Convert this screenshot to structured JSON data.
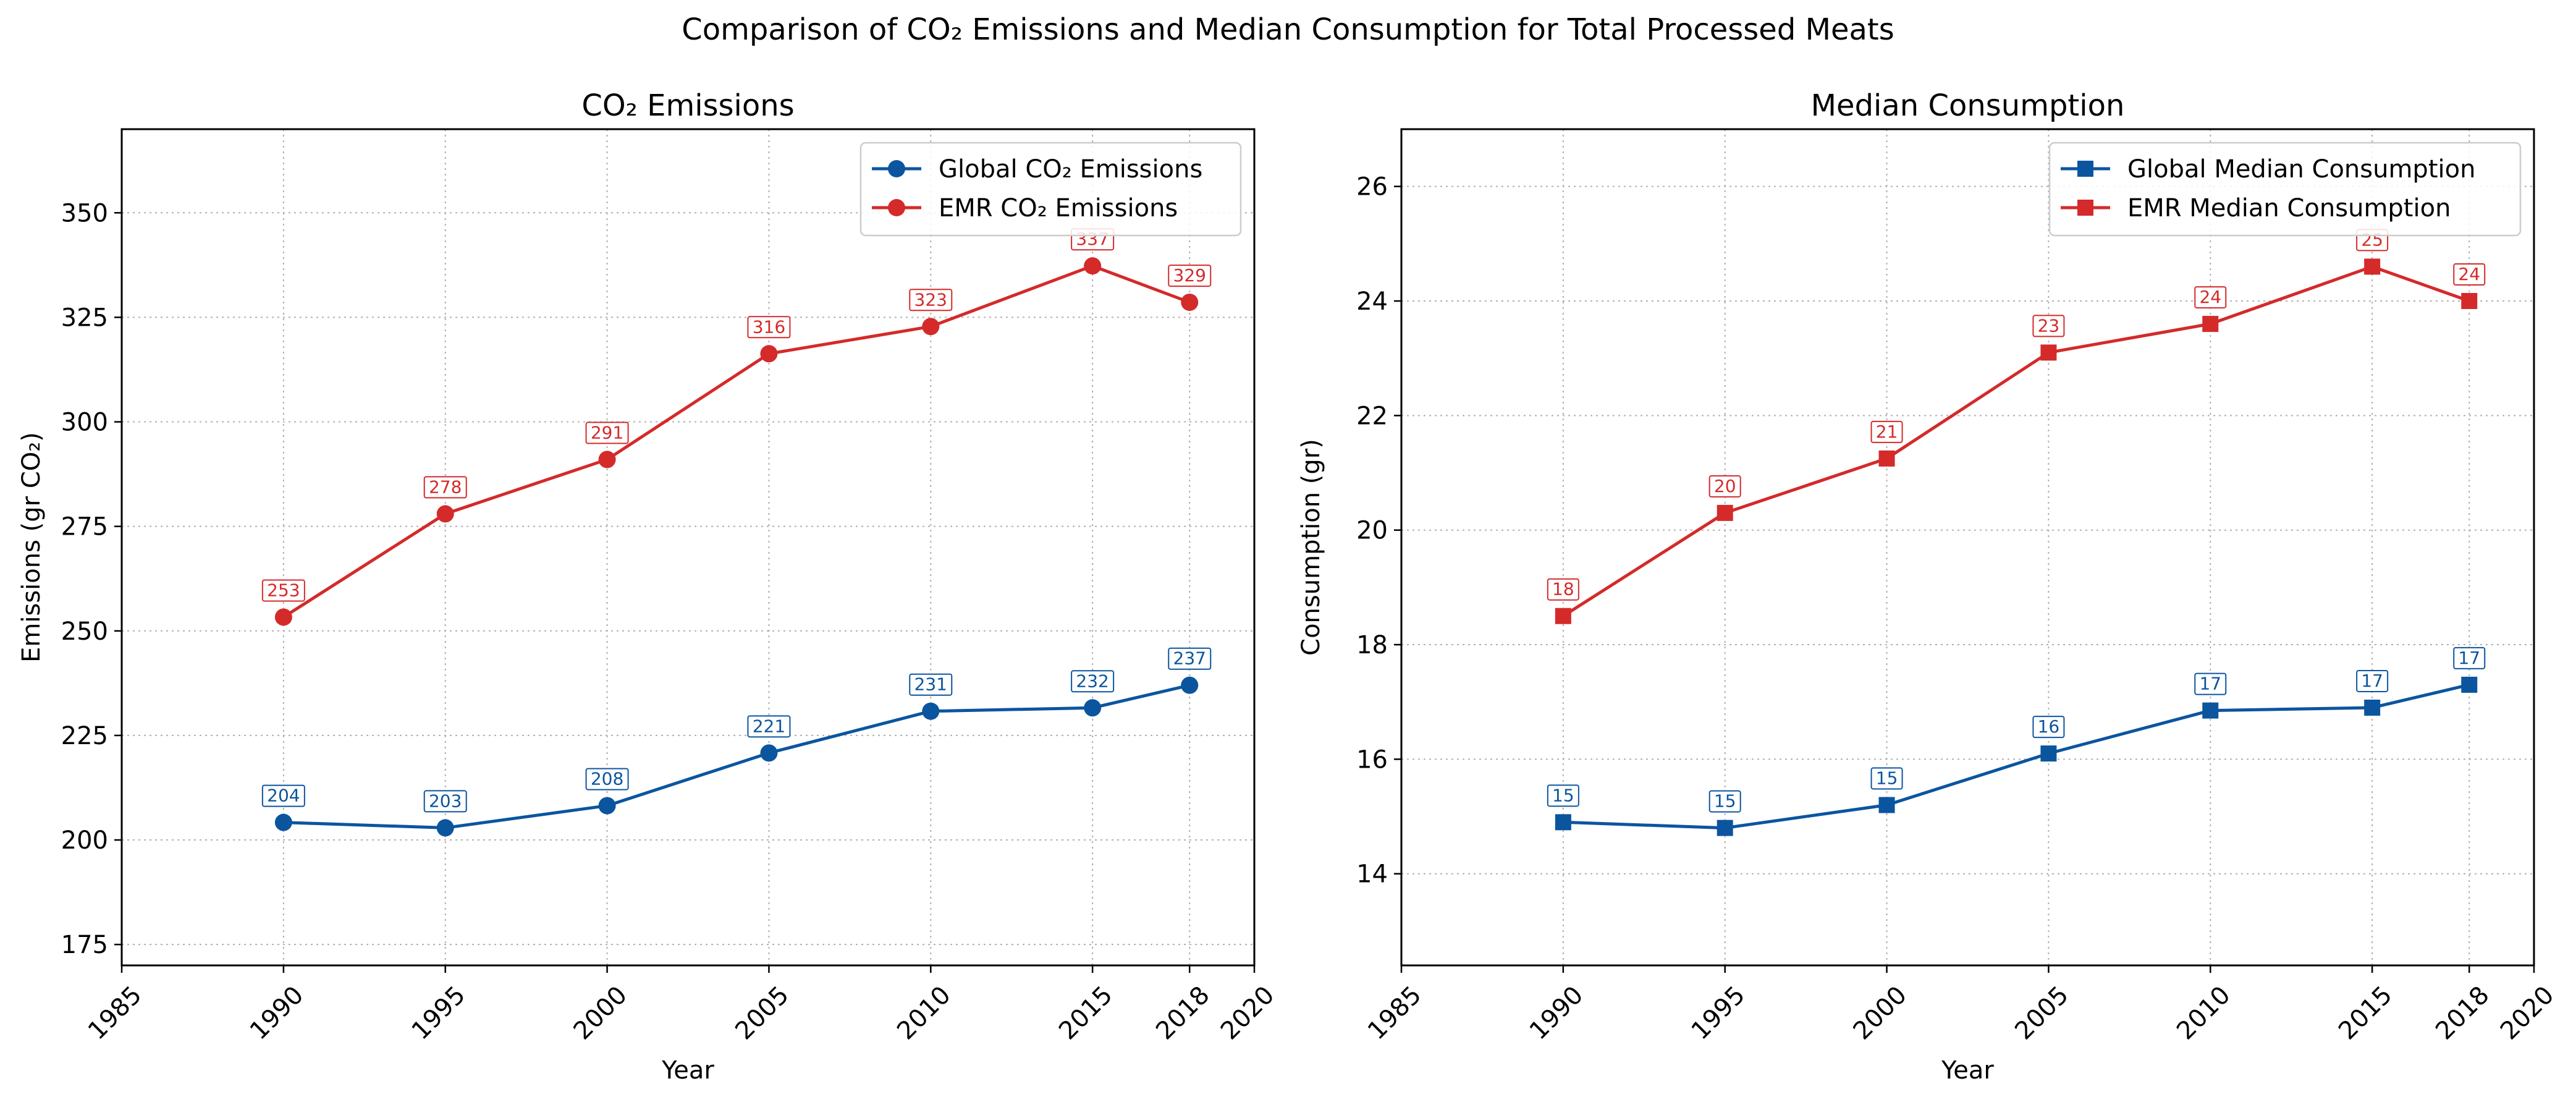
{
  "figure": {
    "suptitle": "Comparison of CO₂ Emissions and Median Consumption for Total Processed Meats"
  },
  "chart_data": [
    {
      "type": "line",
      "title": "CO₂ Emissions",
      "xlabel": "Year",
      "ylabel": "Emissions (gr CO₂)",
      "xlim": [
        1985,
        2020
      ],
      "ylim": [
        170,
        370
      ],
      "xticks": [
        1985,
        1990,
        1995,
        2000,
        2005,
        2010,
        2015,
        2018,
        2020
      ],
      "yticks": [
        175,
        200,
        225,
        250,
        275,
        300,
        325,
        350
      ],
      "grid": true,
      "legend_position": "top-right",
      "x": [
        1990,
        1995,
        2000,
        2005,
        2010,
        2015,
        2018
      ],
      "series": [
        {
          "name": "Global CO₂ Emissions",
          "color": "#0b559f",
          "marker": "circle",
          "values": [
            204.2,
            202.9,
            208.2,
            220.8,
            230.8,
            231.6,
            237.0
          ],
          "labels": [
            "204",
            "203",
            "208",
            "221",
            "231",
            "232",
            "237"
          ]
        },
        {
          "name": "EMR CO₂ Emissions",
          "color": "#d42a2a",
          "marker": "circle",
          "values": [
            253.3,
            278.0,
            291.0,
            316.3,
            322.8,
            337.3,
            328.6
          ],
          "labels": [
            "253",
            "278",
            "291",
            "316",
            "323",
            "337",
            "329"
          ]
        }
      ]
    },
    {
      "type": "line",
      "title": "Median Consumption",
      "xlabel": "Year",
      "ylabel": "Consumption (gr)",
      "xlim": [
        1985,
        2020
      ],
      "ylim": [
        12.4,
        27.0
      ],
      "xticks": [
        1985,
        1990,
        1995,
        2000,
        2005,
        2010,
        2015,
        2018,
        2020
      ],
      "yticks": [
        14,
        16,
        18,
        20,
        22,
        24,
        26
      ],
      "grid": true,
      "legend_position": "top-right",
      "x": [
        1990,
        1995,
        2000,
        2005,
        2010,
        2015,
        2018
      ],
      "series": [
        {
          "name": "Global Median Consumption",
          "color": "#0b559f",
          "marker": "square",
          "values": [
            14.9,
            14.8,
            15.2,
            16.1,
            16.85,
            16.9,
            17.3
          ],
          "labels": [
            "15",
            "15",
            "15",
            "16",
            "17",
            "17",
            "17"
          ]
        },
        {
          "name": "EMR Median Consumption",
          "color": "#d42a2a",
          "marker": "square",
          "values": [
            18.5,
            20.3,
            21.25,
            23.1,
            23.6,
            24.6,
            24.0
          ],
          "labels": [
            "18",
            "20",
            "21",
            "23",
            "24",
            "25",
            "24"
          ]
        }
      ]
    }
  ]
}
